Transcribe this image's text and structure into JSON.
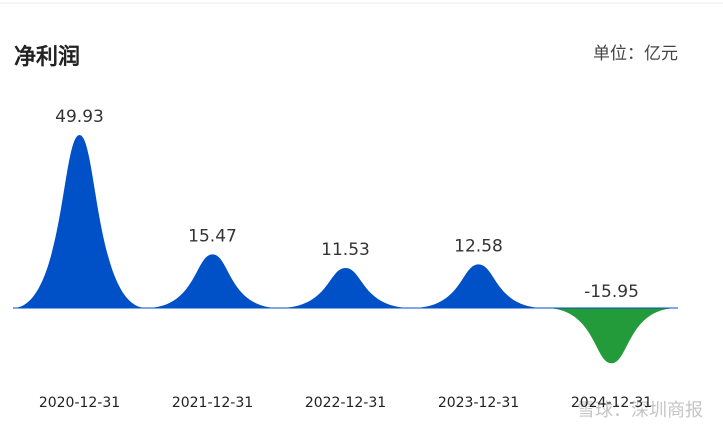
{
  "chart_data": {
    "type": "spike",
    "title": "净利润",
    "unit": "单位：亿元",
    "categories": [
      "2020-12-31",
      "2021-12-31",
      "2022-12-31",
      "2023-12-31",
      "2024-12-31"
    ],
    "values": [
      49.93,
      15.47,
      11.53,
      12.58,
      -15.95
    ],
    "color": "#0050c8",
    "negative_color": "#239b3a",
    "watermark": "雪球：深圳商报"
  }
}
